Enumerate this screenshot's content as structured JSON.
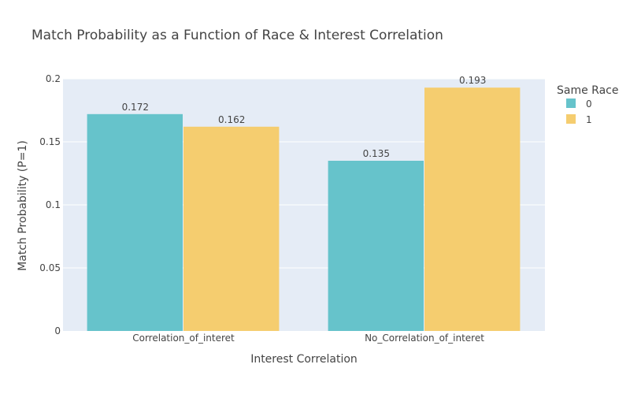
{
  "chart_data": {
    "type": "bar",
    "title": "Match Probability as a Function of Race & Interest Correlation",
    "xlabel": "Interest Correlation",
    "ylabel": "Match Probability (P=1)",
    "categories": [
      "Correlation_of_interet",
      "No_Correlation_of_interet"
    ],
    "series": [
      {
        "name": "0",
        "values": [
          0.172,
          0.135
        ],
        "labels": [
          "0.172",
          "0.135"
        ],
        "color": "#66c3cb"
      },
      {
        "name": "1",
        "values": [
          0.162,
          0.193
        ],
        "labels": [
          "0.162",
          "0.193"
        ],
        "color": "#f5cd6f"
      }
    ],
    "ylim": [
      0,
      0.2
    ],
    "yticks": [
      0,
      0.05,
      0.1,
      0.15,
      0.2
    ],
    "ytick_labels": [
      "0",
      "0.05",
      "0.1",
      "0.15",
      "0.2"
    ],
    "legend_title": "Same Race",
    "legend_position": "top-right",
    "grid": true,
    "plot_background": "#e5ecf6",
    "gridline_color": "#ffffff"
  }
}
